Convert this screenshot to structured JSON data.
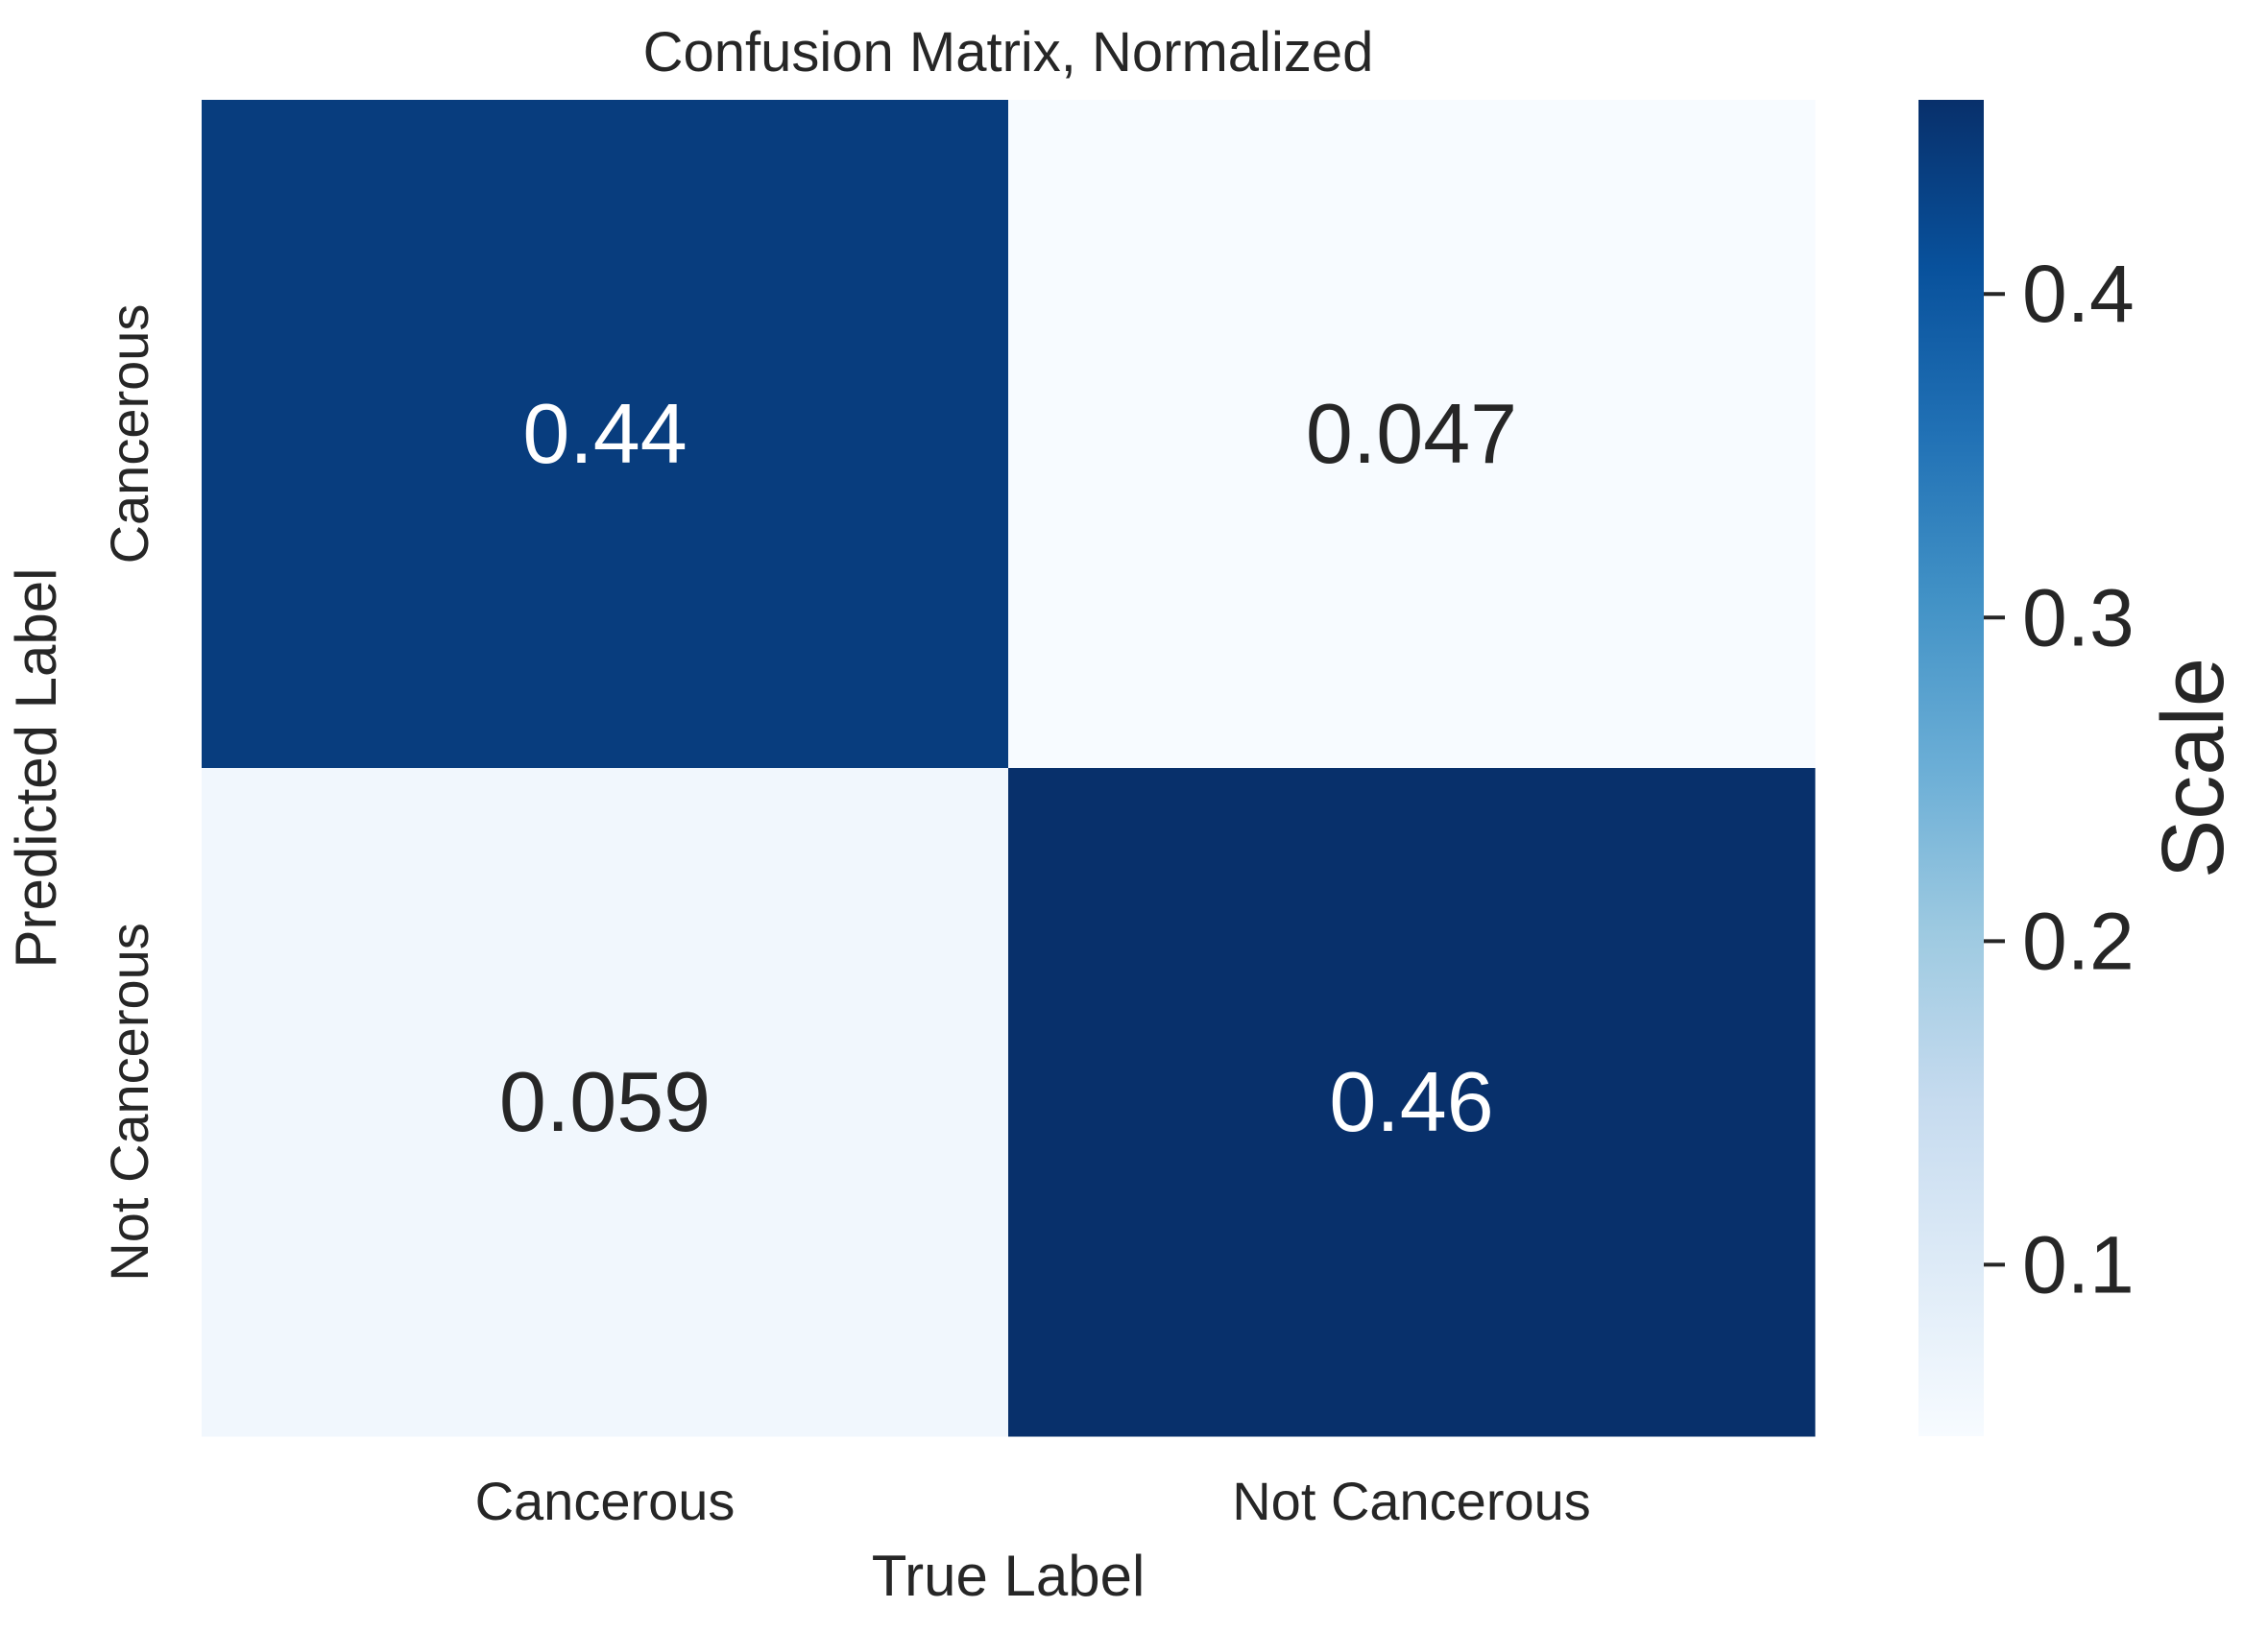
{
  "chart_data": {
    "type": "heatmap",
    "title": "Confusion Matrix, Normalized",
    "xlabel": "True Label",
    "ylabel": "Predicted Label",
    "x_categories": [
      "Cancerous",
      "Not Cancerous"
    ],
    "y_categories": [
      "Cancerous",
      "Not Cancerous"
    ],
    "values": [
      [
        0.44,
        0.047
      ],
      [
        0.059,
        0.46
      ]
    ],
    "annotations": [
      [
        "0.44",
        "0.047"
      ],
      [
        "0.059",
        "0.46"
      ]
    ],
    "colormap": "Blues",
    "colorbar": {
      "label": "Scale",
      "range": [
        0.047,
        0.46
      ],
      "ticks": [
        0.1,
        0.2,
        0.3,
        0.4
      ],
      "tick_labels": [
        "0.1",
        "0.2",
        "0.3",
        "0.4"
      ]
    },
    "grid": false
  }
}
